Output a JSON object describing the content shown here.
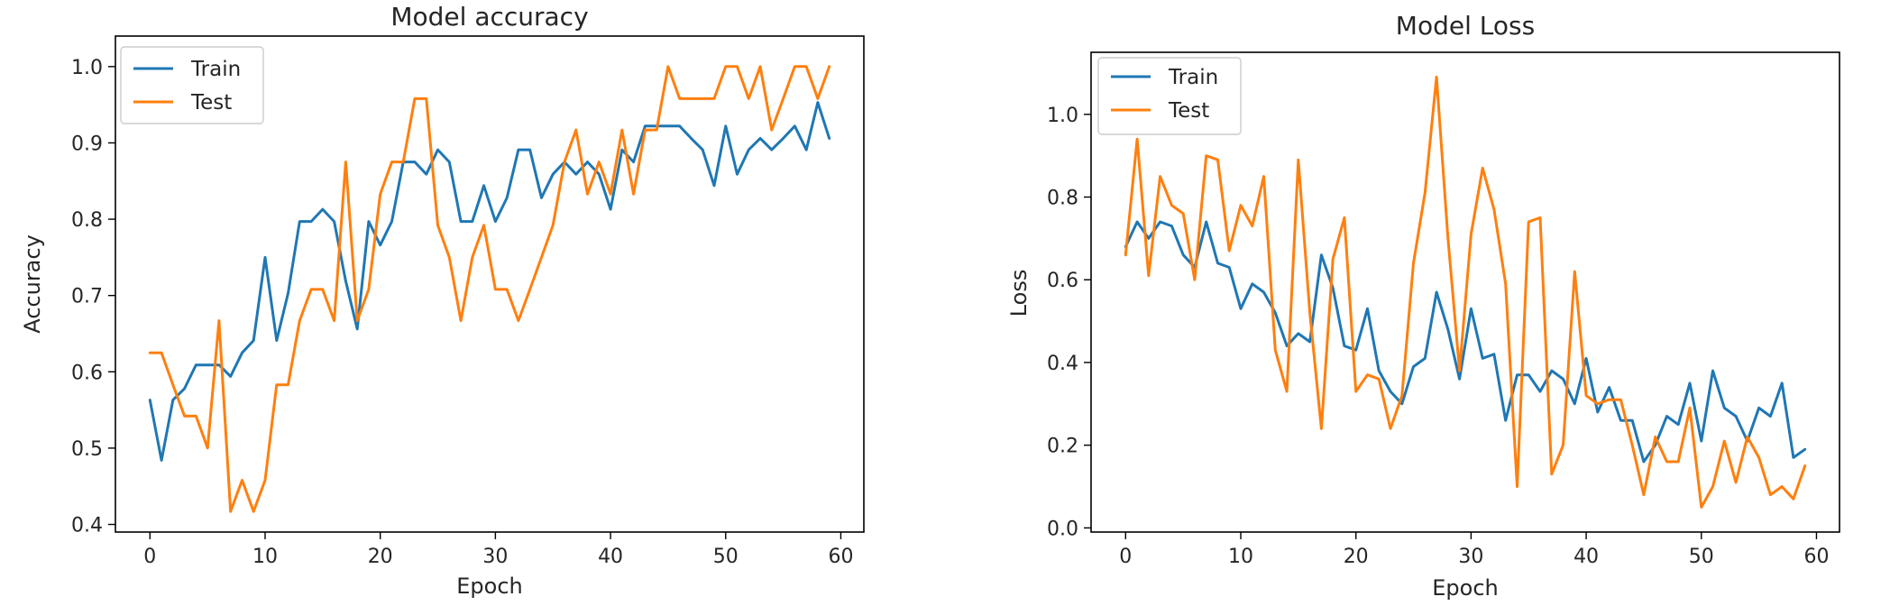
{
  "chart_data": [
    {
      "type": "line",
      "title": "Model accuracy",
      "xlabel": "Epoch",
      "ylabel": "Accuracy",
      "xlim": [
        -3,
        62
      ],
      "ylim": [
        0.39,
        1.04
      ],
      "xticks": [
        0,
        10,
        20,
        30,
        40,
        50,
        60
      ],
      "yticks": [
        0.4,
        0.5,
        0.6,
        0.7,
        0.8,
        0.9,
        1.0
      ],
      "xtick_labels": [
        "0",
        "10",
        "20",
        "30",
        "40",
        "50",
        "60"
      ],
      "ytick_labels": [
        "0.4",
        "0.5",
        "0.6",
        "0.7",
        "0.8",
        "0.9",
        "1.0"
      ],
      "grid": false,
      "legend": "top-left",
      "x": [
        0,
        1,
        2,
        3,
        4,
        5,
        6,
        7,
        8,
        9,
        10,
        11,
        12,
        13,
        14,
        15,
        16,
        17,
        18,
        19,
        20,
        21,
        22,
        23,
        24,
        25,
        26,
        27,
        28,
        29,
        30,
        31,
        32,
        33,
        34,
        35,
        36,
        37,
        38,
        39,
        40,
        41,
        42,
        43,
        44,
        45,
        46,
        47,
        48,
        49,
        50,
        51,
        52,
        53,
        54,
        55,
        56,
        57,
        58,
        59
      ],
      "series": [
        {
          "name": "Train",
          "color": "#1f77b4",
          "values": [
            0.563,
            0.484,
            0.563,
            0.578,
            0.609,
            0.609,
            0.609,
            0.594,
            0.625,
            0.641,
            0.75,
            0.641,
            0.703,
            0.797,
            0.797,
            0.813,
            0.797,
            0.719,
            0.656,
            0.797,
            0.766,
            0.797,
            0.875,
            0.875,
            0.859,
            0.891,
            0.875,
            0.797,
            0.797,
            0.844,
            0.797,
            0.828,
            0.891,
            0.891,
            0.828,
            0.859,
            0.875,
            0.859,
            0.875,
            0.859,
            0.813,
            0.891,
            0.875,
            0.922,
            0.922,
            0.922,
            0.922,
            0.906,
            0.891,
            0.844,
            0.922,
            0.859,
            0.891,
            0.906,
            0.891,
            0.906,
            0.922,
            0.891,
            0.953,
            0.906
          ]
        },
        {
          "name": "Test",
          "color": "#ff7f0e",
          "values": [
            0.625,
            0.625,
            0.583,
            0.542,
            0.542,
            0.5,
            0.667,
            0.417,
            0.458,
            0.417,
            0.458,
            0.583,
            0.583,
            0.667,
            0.708,
            0.708,
            0.667,
            0.875,
            0.667,
            0.708,
            0.833,
            0.875,
            0.875,
            0.958,
            0.958,
            0.792,
            0.75,
            0.667,
            0.75,
            0.792,
            0.708,
            0.708,
            0.667,
            0.708,
            0.75,
            0.792,
            0.875,
            0.917,
            0.833,
            0.875,
            0.833,
            0.917,
            0.833,
            0.917,
            0.917,
            1.0,
            0.958,
            0.958,
            0.958,
            0.958,
            1.0,
            1.0,
            0.958,
            1.0,
            0.917,
            0.958,
            1.0,
            1.0,
            0.958,
            1.0
          ]
        }
      ]
    },
    {
      "type": "line",
      "title": "Model Loss",
      "xlabel": "Epoch",
      "ylabel": "Loss",
      "xlim": [
        -3,
        62
      ],
      "ylim": [
        -0.01,
        1.15
      ],
      "xticks": [
        0,
        10,
        20,
        30,
        40,
        50,
        60
      ],
      "yticks": [
        0.0,
        0.2,
        0.4,
        0.6,
        0.8,
        1.0
      ],
      "xtick_labels": [
        "0",
        "10",
        "20",
        "30",
        "40",
        "50",
        "60"
      ],
      "ytick_labels": [
        "0.0",
        "0.2",
        "0.4",
        "0.6",
        "0.8",
        "1.0"
      ],
      "grid": false,
      "legend": "top-left",
      "x": [
        0,
        1,
        2,
        3,
        4,
        5,
        6,
        7,
        8,
        9,
        10,
        11,
        12,
        13,
        14,
        15,
        16,
        17,
        18,
        19,
        20,
        21,
        22,
        23,
        24,
        25,
        26,
        27,
        28,
        29,
        30,
        31,
        32,
        33,
        34,
        35,
        36,
        37,
        38,
        39,
        40,
        41,
        42,
        43,
        44,
        45,
        46,
        47,
        48,
        49,
        50,
        51,
        52,
        53,
        54,
        55,
        56,
        57,
        58,
        59
      ],
      "series": [
        {
          "name": "Train",
          "color": "#1f77b4",
          "values": [
            0.68,
            0.74,
            0.7,
            0.74,
            0.73,
            0.66,
            0.63,
            0.74,
            0.64,
            0.63,
            0.53,
            0.59,
            0.57,
            0.52,
            0.44,
            0.47,
            0.45,
            0.66,
            0.58,
            0.44,
            0.43,
            0.53,
            0.38,
            0.33,
            0.3,
            0.39,
            0.41,
            0.57,
            0.48,
            0.36,
            0.53,
            0.41,
            0.42,
            0.26,
            0.37,
            0.37,
            0.33,
            0.38,
            0.36,
            0.3,
            0.41,
            0.28,
            0.34,
            0.26,
            0.26,
            0.16,
            0.2,
            0.27,
            0.25,
            0.35,
            0.21,
            0.38,
            0.29,
            0.27,
            0.21,
            0.29,
            0.27,
            0.35,
            0.17,
            0.19
          ]
        },
        {
          "name": "Test",
          "color": "#ff7f0e",
          "values": [
            0.66,
            0.94,
            0.61,
            0.85,
            0.78,
            0.76,
            0.6,
            0.9,
            0.89,
            0.67,
            0.78,
            0.73,
            0.85,
            0.43,
            0.33,
            0.89,
            0.52,
            0.24,
            0.65,
            0.75,
            0.33,
            0.37,
            0.36,
            0.24,
            0.32,
            0.64,
            0.81,
            1.09,
            0.7,
            0.38,
            0.71,
            0.87,
            0.77,
            0.59,
            0.1,
            0.74,
            0.75,
            0.13,
            0.2,
            0.62,
            0.32,
            0.3,
            0.31,
            0.31,
            0.2,
            0.08,
            0.22,
            0.16,
            0.16,
            0.29,
            0.05,
            0.1,
            0.21,
            0.11,
            0.22,
            0.17,
            0.08,
            0.1,
            0.07,
            0.15
          ]
        }
      ]
    }
  ]
}
